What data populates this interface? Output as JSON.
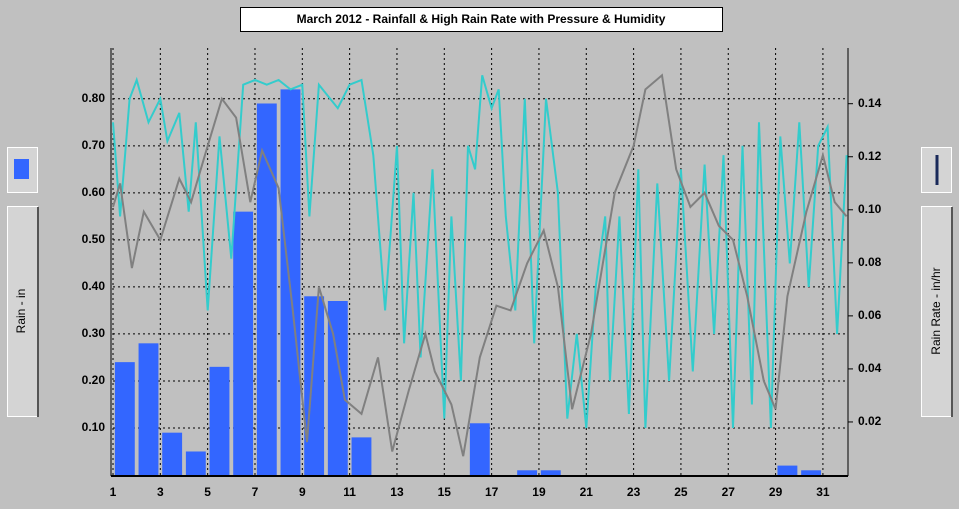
{
  "chart_data": {
    "type": "bar",
    "title": "March 2012 - Rainfall & High Rain Rate with Pressure & Humidity",
    "ylabel": "Rain - in",
    "y2label": "Rain Rate - in/hr",
    "x": [
      1.5,
      2.5,
      3.5,
      4.5,
      5.5,
      6.5,
      7.5,
      8.5,
      9.5,
      10.5,
      11.5,
      12.5,
      13.5,
      14.5,
      15.5,
      16.5,
      17.5,
      18.5,
      19.5,
      20.5,
      21.5,
      22.5,
      23.5,
      24.5,
      25.5,
      26.5,
      27.5,
      28.5,
      29.5,
      30.5,
      31.5
    ],
    "values": [
      0.24,
      0.28,
      0.09,
      0.05,
      0.23,
      0.56,
      0.79,
      0.82,
      0.38,
      0.37,
      0.08,
      0,
      0,
      0,
      0,
      0.11,
      0,
      0.01,
      0.01,
      0,
      0,
      0,
      0,
      0,
      0,
      0,
      0,
      0,
      0.02,
      0.01,
      0
    ],
    "color": "#3366ff",
    "lines": [
      {
        "color": "#33cccc",
        "x": [
          1,
          1.3,
          1.7,
          2,
          2.5,
          3,
          3.3,
          3.8,
          4.2,
          4.5,
          5,
          5.5,
          6,
          6.5,
          7,
          7.5,
          8,
          8.5,
          9,
          9.3,
          9.7,
          10.5,
          11,
          11.5,
          12,
          12.5,
          13,
          13.3,
          13.7,
          14,
          14.5,
          15,
          15.3,
          15.7,
          16,
          16.3,
          16.6,
          17,
          17.3,
          17.6,
          18,
          18.4,
          18.8,
          19.3,
          19.8,
          20.2,
          20.6,
          21,
          21.4,
          21.8,
          22,
          22.4,
          22.8,
          23.2,
          23.5,
          24,
          24.5,
          25,
          25.5,
          26,
          26.4,
          26.8,
          27.2,
          27.6,
          28,
          28.3,
          28.8,
          29.2,
          29.6,
          30,
          30.4,
          30.8,
          31.2,
          31.6,
          32
        ],
        "values": [
          0.75,
          0.55,
          0.8,
          0.84,
          0.75,
          0.8,
          0.71,
          0.77,
          0.56,
          0.75,
          0.35,
          0.72,
          0.46,
          0.83,
          0.84,
          0.83,
          0.84,
          0.82,
          0.83,
          0.55,
          0.83,
          0.78,
          0.83,
          0.84,
          0.68,
          0.35,
          0.7,
          0.28,
          0.6,
          0.25,
          0.65,
          0.12,
          0.55,
          0.2,
          0.7,
          0.65,
          0.85,
          0.78,
          0.82,
          0.55,
          0.35,
          0.8,
          0.28,
          0.8,
          0.6,
          0.12,
          0.3,
          0.1,
          0.4,
          0.55,
          0.2,
          0.55,
          0.13,
          0.65,
          0.1,
          0.62,
          0.2,
          0.65,
          0.22,
          0.66,
          0.3,
          0.68,
          0.1,
          0.7,
          0.15,
          0.75,
          0.1,
          0.72,
          0.45,
          0.75,
          0.4,
          0.7,
          0.74,
          0.3,
          0.68
        ]
      },
      {
        "color": "#808080",
        "x": [
          1,
          1.3,
          1.8,
          2.3,
          3,
          3.8,
          4.3,
          5,
          5.6,
          6.2,
          6.8,
          7.3,
          8,
          8.6,
          9.2,
          9.7,
          10.3,
          10.8,
          11.5,
          12.2,
          12.8,
          13.5,
          14.2,
          14.6,
          15.3,
          15.8,
          16.5,
          17.2,
          17.8,
          18.5,
          19.2,
          19.8,
          20.4,
          21.2,
          22.2,
          23,
          23.5,
          24.2,
          24.8,
          25.4,
          26,
          26.6,
          27.2,
          27.8,
          28.5,
          29,
          29.5,
          30.3,
          31,
          31.5,
          32
        ],
        "values": [
          0.57,
          0.62,
          0.44,
          0.56,
          0.5,
          0.63,
          0.58,
          0.7,
          0.8,
          0.76,
          0.58,
          0.69,
          0.61,
          0.35,
          0.07,
          0.4,
          0.3,
          0.16,
          0.13,
          0.25,
          0.05,
          0.18,
          0.3,
          0.22,
          0.15,
          0.04,
          0.25,
          0.36,
          0.35,
          0.45,
          0.52,
          0.4,
          0.14,
          0.3,
          0.6,
          0.7,
          0.82,
          0.85,
          0.65,
          0.57,
          0.6,
          0.53,
          0.5,
          0.38,
          0.2,
          0.14,
          0.38,
          0.56,
          0.68,
          0.58,
          0.55
        ]
      }
    ],
    "xlim": [
      1,
      32.06
    ],
    "xticks": [
      1,
      3,
      5,
      7,
      9,
      11,
      13,
      15,
      17,
      19,
      21,
      23,
      25,
      27,
      29,
      31
    ],
    "ylim": [
      0,
      0.908
    ],
    "yticks": [
      {
        "value": 0.1,
        "label": "0.10"
      },
      {
        "value": 0.2,
        "label": "0.20"
      },
      {
        "value": 0.3,
        "label": "0.30"
      },
      {
        "value": 0.4,
        "label": "0.40"
      },
      {
        "value": 0.5,
        "label": "0.50"
      },
      {
        "value": 0.6,
        "label": "0.60"
      },
      {
        "value": 0.7,
        "label": "0.70"
      },
      {
        "value": 0.8,
        "label": "0.80"
      }
    ],
    "y2lim": [
      0,
      0.161
    ],
    "y2ticks": [
      0.02,
      0.04,
      0.06,
      0.08,
      {
        "value": 0.1,
        "label": "0.10"
      },
      0.12,
      0.14
    ],
    "grid": true
  }
}
